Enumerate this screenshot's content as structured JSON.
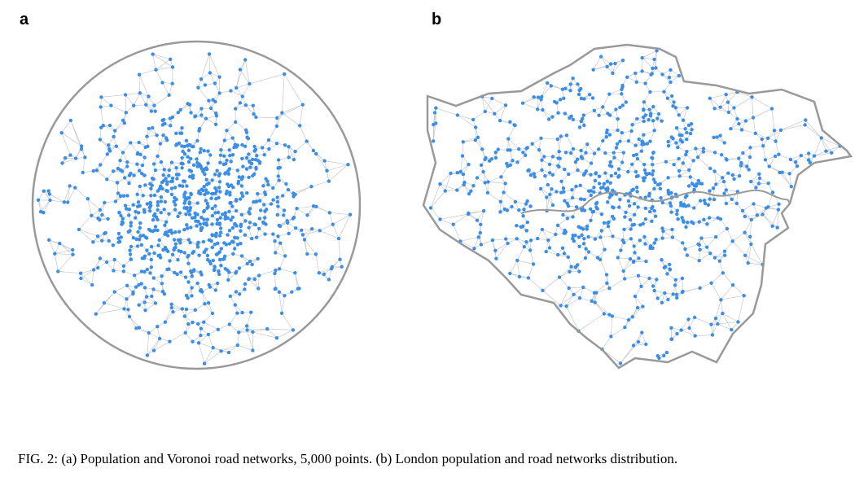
{
  "panels": [
    {
      "label": "a"
    },
    {
      "label": "b"
    }
  ],
  "caption": "FIG. 2: (a) Population and Voronoi road networks, 5,000 points. (b) London population and road networks distribution."
}
